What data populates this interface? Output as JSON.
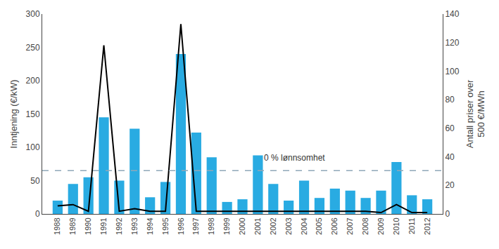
{
  "chart_data": {
    "type": "bar",
    "x": [
      1988,
      1989,
      1990,
      1991,
      1992,
      1993,
      1994,
      1995,
      1996,
      1997,
      1998,
      1999,
      2000,
      2001,
      2002,
      2003,
      2004,
      2005,
      2006,
      2007,
      2008,
      2009,
      2010,
      2011,
      2012
    ],
    "series": [
      {
        "type": "bar",
        "color": "#29ABE2",
        "values": [
          20,
          45,
          55,
          145,
          50,
          128,
          25,
          48,
          240,
          122,
          85,
          18,
          22,
          88,
          45,
          20,
          50,
          24,
          38,
          35,
          24,
          35,
          78,
          28,
          22
        ]
      },
      {
        "type": "line",
        "color": "#000000",
        "values": [
          12,
          14,
          4,
          253,
          4,
          8,
          4,
          4,
          285,
          4,
          4,
          4,
          4,
          4,
          4,
          4,
          4,
          4,
          4,
          4,
          4,
          2,
          14,
          2,
          2
        ]
      }
    ],
    "xlim": [
      1987,
      2013
    ],
    "xticks": [
      1988,
      1989,
      1990,
      1991,
      1992,
      1993,
      1994,
      1995,
      1996,
      1997,
      1998,
      1999,
      2000,
      2001,
      2002,
      2003,
      2004,
      2005,
      2006,
      2007,
      2008,
      2009,
      2010,
      2011,
      2012
    ],
    "ylim": [
      0,
      300
    ],
    "yticks": [
      0,
      50,
      100,
      150,
      200,
      250,
      300
    ],
    "y2lim": [
      0,
      140
    ],
    "y2ticks": [
      0,
      20,
      40,
      60,
      80,
      100,
      120,
      140
    ],
    "ylabel": "Inntjening (€/kW)",
    "y2label": "Antall priser over\n500 €/MWh",
    "hlines": [
      {
        "y": 65,
        "color": "#8FA8B8",
        "line_style": "dashed"
      }
    ],
    "annotations": [
      {
        "text": "0 % lønnsomhet",
        "x": 2001.3,
        "y": 75,
        "color": "#333333"
      }
    ],
    "grid": false
  }
}
